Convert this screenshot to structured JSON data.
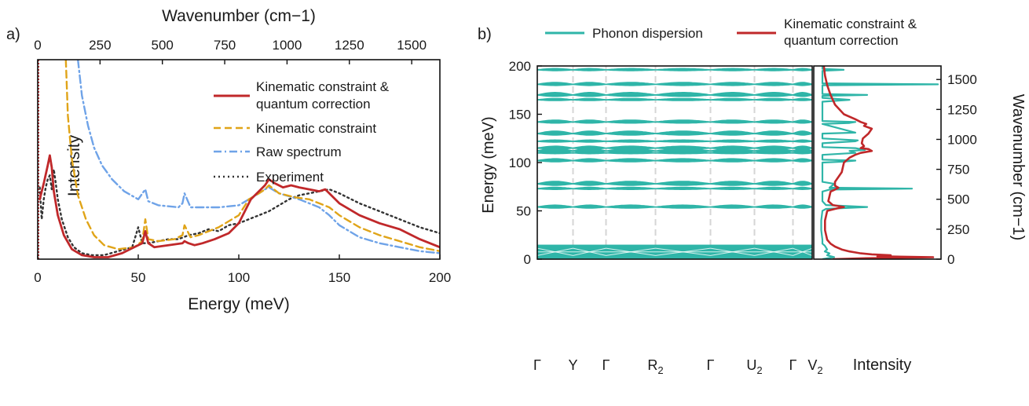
{
  "colors": {
    "kinematic_quantum": "#c0282a",
    "kinematic": "#e0a418",
    "raw": "#6fa3e8",
    "experiment": "#333333",
    "phonon": "#2fb5a8",
    "dashed_line": "#d5d5d5"
  },
  "chart_data": [
    {
      "panel_label": "a)",
      "type": "line",
      "xlabel": "Energy (meV)",
      "ylabel": "Intensity",
      "top_axis_label": "Wavenumber (cm−1)",
      "xlim": [
        0,
        200
      ],
      "ylim": [
        0,
        1.0
      ],
      "top_xlim": [
        0,
        1613
      ],
      "xticks": [
        "0",
        "50",
        "100",
        "150",
        "200"
      ],
      "top_xticks": [
        "0",
        "250",
        "500",
        "750",
        "1000",
        "1250",
        "1500"
      ],
      "legend": "top-right",
      "series": [
        {
          "name": "Kinematic constraint & quantum correction",
          "name_line1": "Kinematic constraint &",
          "name_line2": "quantum correction",
          "style": "solid",
          "x": [
            1,
            3,
            5,
            6,
            7,
            8,
            10,
            13,
            17,
            22,
            28,
            35,
            42,
            48,
            52,
            53.5,
            55,
            58,
            65,
            72,
            73,
            75,
            78,
            82,
            88,
            95,
            100,
            103,
            106,
            110,
            113,
            115,
            118,
            122,
            126,
            130,
            135,
            140,
            143,
            146,
            150,
            160,
            170,
            180,
            190,
            200
          ],
          "y": [
            0.3,
            0.38,
            0.47,
            0.52,
            0.46,
            0.34,
            0.22,
            0.12,
            0.05,
            0.02,
            0.01,
            0.01,
            0.03,
            0.06,
            0.08,
            0.14,
            0.08,
            0.06,
            0.07,
            0.08,
            0.09,
            0.08,
            0.07,
            0.08,
            0.1,
            0.13,
            0.18,
            0.24,
            0.3,
            0.34,
            0.37,
            0.4,
            0.38,
            0.36,
            0.37,
            0.36,
            0.35,
            0.34,
            0.35,
            0.32,
            0.28,
            0.22,
            0.18,
            0.15,
            0.1,
            0.06
          ]
        },
        {
          "name": "Kinematic constraint",
          "style": "dashed",
          "x": [
            14,
            15,
            17,
            20,
            24,
            28,
            33,
            40,
            48,
            52,
            53.5,
            55,
            60,
            68,
            72,
            73,
            76,
            80,
            90,
            100,
            105,
            110,
            113,
            115,
            120,
            128,
            135,
            140,
            145,
            150,
            160,
            170,
            180,
            190,
            200
          ],
          "y": [
            1.0,
            0.72,
            0.5,
            0.32,
            0.2,
            0.12,
            0.07,
            0.05,
            0.06,
            0.09,
            0.2,
            0.1,
            0.09,
            0.1,
            0.12,
            0.17,
            0.11,
            0.12,
            0.16,
            0.22,
            0.3,
            0.33,
            0.35,
            0.37,
            0.33,
            0.31,
            0.3,
            0.28,
            0.26,
            0.22,
            0.16,
            0.12,
            0.09,
            0.06,
            0.04
          ]
        },
        {
          "name": "Raw spectrum",
          "style": "dashdot",
          "x": [
            20,
            22,
            25,
            28,
            32,
            37,
            43,
            50,
            53.5,
            55,
            60,
            70,
            72,
            73,
            76,
            80,
            90,
            100,
            105,
            110,
            113,
            115,
            120,
            130,
            140,
            145,
            150,
            160,
            170,
            180,
            190,
            200
          ],
          "y": [
            1.0,
            0.82,
            0.67,
            0.56,
            0.47,
            0.4,
            0.34,
            0.3,
            0.35,
            0.29,
            0.27,
            0.26,
            0.28,
            0.33,
            0.26,
            0.26,
            0.26,
            0.27,
            0.3,
            0.33,
            0.35,
            0.36,
            0.33,
            0.3,
            0.26,
            0.22,
            0.17,
            0.11,
            0.08,
            0.06,
            0.04,
            0.03
          ]
        },
        {
          "name": "Experiment",
          "style": "dotted",
          "x": [
            1,
            2,
            3,
            4,
            5,
            6,
            7,
            8,
            9,
            10,
            12,
            15,
            18,
            22,
            27,
            33,
            40,
            47,
            50,
            52,
            55,
            60,
            65,
            70,
            75,
            80,
            85,
            90,
            95,
            100,
            105,
            110,
            115,
            120,
            125,
            130,
            135,
            140,
            145,
            150,
            160,
            170,
            180,
            190,
            200
          ],
          "y": [
            0.36,
            0.2,
            0.3,
            0.36,
            0.4,
            0.42,
            0.35,
            0.45,
            0.38,
            0.3,
            0.2,
            0.11,
            0.06,
            0.03,
            0.02,
            0.02,
            0.04,
            0.06,
            0.16,
            0.08,
            0.08,
            0.09,
            0.1,
            0.1,
            0.12,
            0.13,
            0.15,
            0.14,
            0.17,
            0.18,
            0.2,
            0.22,
            0.24,
            0.27,
            0.3,
            0.32,
            0.33,
            0.34,
            0.35,
            0.33,
            0.28,
            0.24,
            0.2,
            0.16,
            0.13
          ]
        }
      ]
    },
    {
      "panel_label": "b)",
      "type": "line",
      "ylabel": "Energy (meV)",
      "right_ylabel": "Wavenumber (cm−1)",
      "ylim": [
        0,
        200
      ],
      "right_ylim": [
        0,
        1613
      ],
      "yticks": [
        "0",
        "50",
        "100",
        "150",
        "200"
      ],
      "right_yticks": [
        "0",
        "250",
        "500",
        "750",
        "1000",
        "1250",
        "1500"
      ],
      "xticks": [
        "Γ",
        "Y",
        "Γ",
        "R",
        "Γ",
        "U",
        "Γ",
        "V"
      ],
      "xtick_subscripts": [
        "",
        "",
        "",
        "2",
        "",
        "2",
        "",
        "2"
      ],
      "xtick_positions": [
        0,
        0.13,
        0.25,
        0.43,
        0.63,
        0.79,
        0.93,
        1.0
      ],
      "dos_xlabel": "Intensity",
      "legend": "top",
      "legend_entries": [
        {
          "name": "Phonon dispersion"
        },
        {
          "name": "Kinematic constraint & quantum correction",
          "name_line1": "Kinematic constraint &",
          "name_line2": "quantum correction"
        }
      ],
      "phonon_branches_meV": [
        196,
        181,
        170,
        165,
        142,
        130,
        122,
        115,
        112,
        110,
        102,
        78,
        73,
        54
      ],
      "acoustic_band_top_meV": 15,
      "dos_phonon": {
        "energy": [
          0,
          2,
          4,
          6,
          8,
          10,
          12,
          14,
          16,
          20,
          30,
          40,
          50,
          52,
          54,
          56,
          60,
          70,
          72,
          73,
          74,
          78,
          80,
          100,
          101,
          102,
          103,
          108,
          110,
          112,
          113,
          115,
          116,
          120,
          122,
          123,
          125,
          130,
          131,
          140,
          141,
          142,
          143,
          150,
          163,
          165,
          167,
          169,
          170,
          171,
          180,
          181,
          182,
          183,
          190,
          195,
          196,
          197,
          200
        ],
        "value": [
          0.02,
          0.12,
          0.06,
          0.08,
          0.04,
          0.06,
          0.05,
          0.04,
          0.02,
          0.02,
          0.01,
          0.01,
          0.02,
          0.05,
          0.4,
          0.05,
          0.02,
          0.02,
          0.08,
          0.78,
          0.08,
          0.12,
          0.02,
          0.02,
          0.2,
          0.3,
          0.02,
          0.02,
          0.3,
          0.25,
          0.38,
          0.3,
          0.02,
          0.02,
          0.3,
          0.32,
          0.02,
          0.02,
          0.3,
          0.02,
          0.25,
          0.3,
          0.02,
          0.02,
          0.02,
          0.25,
          0.02,
          0.02,
          0.4,
          0.02,
          0.02,
          1.0,
          0.02,
          0.02,
          0.02,
          0.02,
          0.2,
          0.02,
          0.02
        ]
      },
      "dos_corrected": {
        "energy": [
          0,
          1,
          2,
          3,
          4,
          5,
          6,
          7,
          8,
          10,
          13,
          16,
          20,
          25,
          30,
          40,
          50,
          52,
          54,
          56,
          60,
          70,
          72,
          74,
          76,
          80,
          90,
          100,
          105,
          108,
          110,
          112,
          114,
          115,
          117,
          120,
          125,
          130,
          135,
          138,
          140,
          142,
          145,
          150,
          160,
          170,
          180,
          190,
          200
        ],
        "value": [
          0.1,
          0.4,
          1.0,
          0.5,
          0.62,
          0.45,
          0.35,
          0.3,
          0.25,
          0.18,
          0.12,
          0.08,
          0.05,
          0.04,
          0.03,
          0.03,
          0.05,
          0.12,
          0.2,
          0.1,
          0.06,
          0.08,
          0.12,
          0.15,
          0.12,
          0.12,
          0.18,
          0.2,
          0.25,
          0.3,
          0.35,
          0.45,
          0.42,
          0.35,
          0.38,
          0.36,
          0.37,
          0.42,
          0.45,
          0.38,
          0.4,
          0.35,
          0.3,
          0.2,
          0.12,
          0.08,
          0.05,
          0.03,
          0.02
        ]
      }
    }
  ]
}
